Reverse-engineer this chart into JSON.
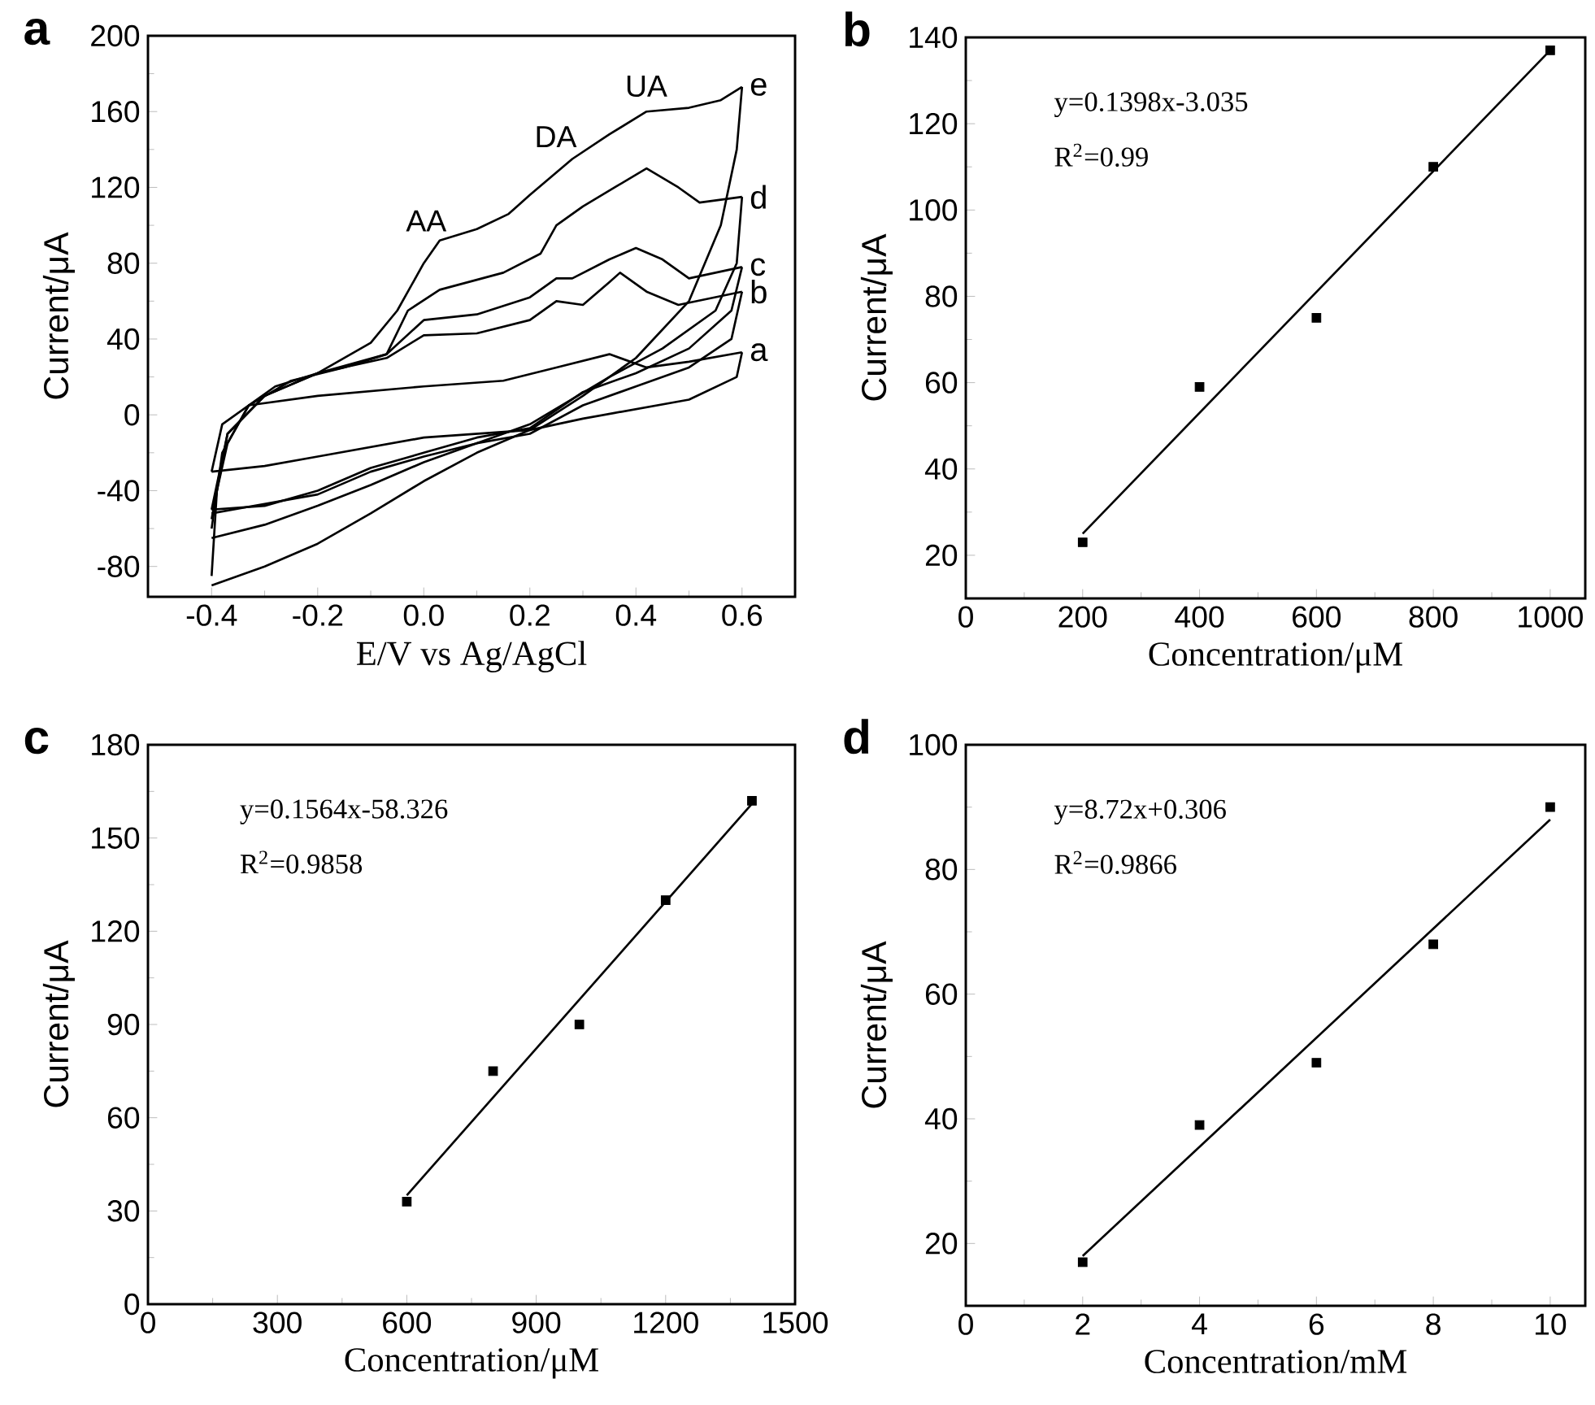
{
  "chart_data": [
    {
      "type": "line",
      "title": "a",
      "xlabel": "E/V vs Ag/AgCl",
      "ylabel": "Current/μA",
      "xlim": [
        -0.52,
        0.7
      ],
      "ylim": [
        -96,
        200
      ],
      "xticks": [
        -0.4,
        -0.2,
        {
          "value": 0,
          "label": "0.0"
        },
        0.2,
        0.4,
        0.6
      ],
      "yticks": [
        -80,
        -40,
        0,
        40,
        80,
        120,
        160,
        200
      ],
      "series": [
        {
          "name": "a",
          "color": "#000000",
          "x": [
            -0.4,
            -0.38,
            -0.33,
            -0.2,
            0,
            0.15,
            0.25,
            0.35,
            0.42,
            0.5,
            0.6
          ],
          "values": [
            -30,
            -5,
            5,
            10,
            15,
            18,
            25,
            32,
            25,
            28,
            33
          ]
        },
        {
          "color": "#000000",
          "x": [
            -0.4,
            -0.3,
            -0.2,
            0,
            0.1,
            0.2,
            0.3,
            0.4,
            0.5,
            0.59,
            0.6
          ],
          "values": [
            -30,
            -27,
            -22,
            -12,
            -10,
            -8,
            -2,
            3,
            8,
            20,
            33
          ]
        },
        {
          "name": "b",
          "color": "#000000",
          "x": [
            -0.4,
            -0.37,
            -0.3,
            -0.2,
            -0.07,
            0,
            0.1,
            0.2,
            0.25,
            0.3,
            0.35,
            0.37,
            0.42,
            0.48,
            0.6
          ],
          "values": [
            -55,
            -10,
            10,
            22,
            30,
            42,
            43,
            50,
            60,
            58,
            70,
            75,
            65,
            58,
            65
          ]
        },
        {
          "color": "#000000",
          "x": [
            -0.4,
            -0.3,
            -0.2,
            -0.1,
            0,
            0.1,
            0.2,
            0.3,
            0.4,
            0.5,
            0.58,
            0.6
          ],
          "values": [
            -52,
            -47,
            -42,
            -30,
            -22,
            -15,
            -10,
            5,
            15,
            25,
            40,
            65
          ]
        },
        {
          "name": "c",
          "color": "#000000",
          "x": [
            -0.4,
            -0.37,
            -0.3,
            -0.2,
            -0.07,
            0,
            0.1,
            0.2,
            0.25,
            0.28,
            0.35,
            0.4,
            0.45,
            0.5,
            0.6
          ],
          "values": [
            -50,
            -10,
            10,
            22,
            32,
            50,
            53,
            62,
            72,
            72,
            82,
            88,
            82,
            72,
            78
          ]
        },
        {
          "color": "#000000",
          "x": [
            -0.4,
            -0.3,
            -0.2,
            -0.1,
            0,
            0.1,
            0.2,
            0.3,
            0.4,
            0.5,
            0.58,
            0.6
          ],
          "values": [
            -50,
            -48,
            -40,
            -28,
            -20,
            -12,
            -7,
            12,
            22,
            35,
            55,
            78
          ]
        },
        {
          "name": "d",
          "color": "#000000",
          "x": [
            -0.4,
            -0.38,
            -0.33,
            -0.25,
            -0.15,
            -0.07,
            -0.03,
            0.03,
            0.15,
            0.22,
            0.25,
            0.3,
            0.36,
            0.42,
            0.48,
            0.52,
            0.6
          ],
          "values": [
            -60,
            -20,
            5,
            18,
            25,
            32,
            55,
            66,
            75,
            85,
            100,
            110,
            120,
            130,
            120,
            112,
            115
          ]
        },
        {
          "color": "#000000",
          "x": [
            -0.4,
            -0.3,
            -0.2,
            -0.1,
            0,
            0.1,
            0.2,
            0.35,
            0.45,
            0.55,
            0.59,
            0.6
          ],
          "values": [
            -65,
            -58,
            -48,
            -37,
            -25,
            -15,
            -5,
            20,
            35,
            55,
            80,
            115
          ]
        },
        {
          "name": "e",
          "color": "#000000",
          "x": [
            -0.4,
            -0.39,
            -0.37,
            -0.33,
            -0.28,
            -0.2,
            -0.1,
            -0.05,
            0,
            0.03,
            0.1,
            0.16,
            0.2,
            0.28,
            0.35,
            0.42,
            0.5,
            0.56,
            0.6
          ],
          "values": [
            -85,
            -40,
            -15,
            5,
            15,
            22,
            38,
            55,
            80,
            92,
            98,
            106,
            116,
            135,
            148,
            160,
            162,
            166,
            173
          ]
        },
        {
          "color": "#000000",
          "x": [
            -0.4,
            -0.3,
            -0.2,
            -0.1,
            0,
            0.1,
            0.2,
            0.3,
            0.4,
            0.5,
            0.56,
            0.59,
            0.6
          ],
          "values": [
            -90,
            -80,
            -68,
            -52,
            -35,
            -20,
            -8,
            10,
            30,
            60,
            100,
            140,
            173
          ]
        }
      ],
      "annotations": [
        "AA",
        "DA",
        "UA"
      ]
    },
    {
      "type": "scatter",
      "title": "b",
      "xlabel": "Concentration/μM",
      "ylabel": "Current/μA",
      "xlim": [
        0,
        1060
      ],
      "ylim": [
        10,
        140
      ],
      "xticks": [
        0,
        200,
        400,
        600,
        800,
        1000
      ],
      "yticks": [
        20,
        40,
        60,
        80,
        100,
        120,
        140
      ],
      "series": [
        {
          "color": "#000000",
          "marker": "square",
          "x": [
            200,
            400,
            600,
            800,
            1000
          ],
          "values": [
            23,
            59,
            75,
            110,
            137
          ]
        },
        {
          "type": "line",
          "color": "#000000",
          "x": [
            200,
            1000
          ],
          "values": [
            25,
            137
          ]
        }
      ],
      "annotations": [
        "y=0.1398x-3.035",
        "R$^{2}$=0.99"
      ]
    },
    {
      "type": "scatter",
      "title": "c",
      "xlabel": "Concentration/μM",
      "ylabel": "Current/μA",
      "xlim": [
        0,
        1500
      ],
      "ylim": [
        0,
        180
      ],
      "xticks": [
        0,
        300,
        600,
        900,
        1200,
        1500
      ],
      "yticks": [
        0,
        30,
        60,
        90,
        120,
        150,
        180
      ],
      "series": [
        {
          "color": "#000000",
          "marker": "square",
          "x": [
            600,
            800,
            1000,
            1200,
            1400
          ],
          "values": [
            33,
            75,
            90,
            130,
            162
          ]
        },
        {
          "type": "line",
          "color": "#000000",
          "x": [
            600,
            1400
          ],
          "values": [
            35,
            161
          ]
        }
      ],
      "annotations": [
        "y=0.1564x-58.326",
        "R$^{2}$=0.9858"
      ]
    },
    {
      "type": "scatter",
      "title": "d",
      "xlabel": "Concentration/mM",
      "ylabel": "Current/μA",
      "xlim": [
        0,
        10.6
      ],
      "ylim": [
        10,
        100
      ],
      "xticks": [
        0,
        2,
        4,
        6,
        8,
        10
      ],
      "yticks": [
        20,
        40,
        60,
        80,
        100
      ],
      "series": [
        {
          "color": "#000000",
          "marker": "square",
          "x": [
            2,
            4,
            6,
            8,
            10
          ],
          "values": [
            17,
            39,
            49,
            68,
            90
          ]
        },
        {
          "type": "line",
          "color": "#000000",
          "x": [
            2,
            10
          ],
          "values": [
            18,
            88
          ]
        }
      ],
      "annotations": [
        "y=8.72x+0.306",
        "R$^{2}$=0.9866"
      ]
    }
  ]
}
